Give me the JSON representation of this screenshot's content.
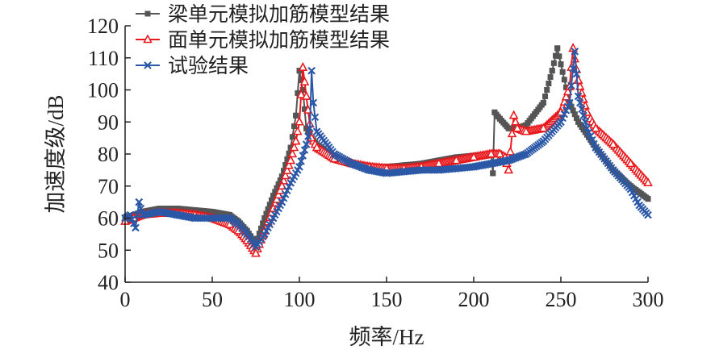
{
  "chart_data": {
    "type": "line",
    "xlabel": "频率/Hz",
    "ylabel": "加速度级/dB",
    "xlim": [
      0,
      300
    ],
    "ylim": [
      40,
      120
    ],
    "xticks": [
      "0",
      "50",
      "100",
      "150",
      "200",
      "250",
      "300"
    ],
    "yticks": [
      "40",
      "50",
      "60",
      "70",
      "80",
      "90",
      "100",
      "110",
      "120"
    ],
    "grid": false,
    "legend_position": "top-left",
    "series": [
      {
        "name": "梁单元模拟加筋模型结果",
        "color": "#555555",
        "marker": "square",
        "points": [
          [
            0,
            60
          ],
          [
            5,
            61
          ],
          [
            10,
            62
          ],
          [
            20,
            63
          ],
          [
            30,
            63
          ],
          [
            40,
            62.5
          ],
          [
            50,
            62
          ],
          [
            60,
            61
          ],
          [
            65,
            59
          ],
          [
            70,
            56
          ],
          [
            75,
            52
          ],
          [
            80,
            60
          ],
          [
            85,
            67
          ],
          [
            90,
            73
          ],
          [
            95,
            82
          ],
          [
            98,
            92
          ],
          [
            100,
            106
          ],
          [
            102,
            100
          ],
          [
            104,
            88
          ],
          [
            107,
            85
          ],
          [
            110,
            83
          ],
          [
            120,
            79
          ],
          [
            130,
            77
          ],
          [
            140,
            76
          ],
          [
            150,
            76
          ],
          [
            160,
            76.5
          ],
          [
            170,
            77
          ],
          [
            180,
            78
          ],
          [
            190,
            79
          ],
          [
            200,
            79.5
          ],
          [
            210,
            80
          ],
          [
            211,
            74
          ],
          [
            212,
            93
          ],
          [
            215,
            91
          ],
          [
            220,
            88
          ],
          [
            225,
            88
          ],
          [
            230,
            89
          ],
          [
            240,
            96
          ],
          [
            245,
            106
          ],
          [
            248,
            113
          ],
          [
            250,
            108
          ],
          [
            255,
            96
          ],
          [
            260,
            90
          ],
          [
            270,
            82
          ],
          [
            280,
            75
          ],
          [
            290,
            70
          ],
          [
            295,
            68
          ],
          [
            300,
            66
          ]
        ]
      },
      {
        "name": "面单元模拟加筋模型结果",
        "color": "#e8191c",
        "marker": "triangle",
        "points": [
          [
            0,
            59
          ],
          [
            5,
            60
          ],
          [
            10,
            61
          ],
          [
            20,
            61.5
          ],
          [
            30,
            61.5
          ],
          [
            40,
            61
          ],
          [
            50,
            60
          ],
          [
            60,
            58
          ],
          [
            65,
            56
          ],
          [
            70,
            53
          ],
          [
            75,
            49
          ],
          [
            80,
            56
          ],
          [
            85,
            63
          ],
          [
            90,
            70
          ],
          [
            95,
            78
          ],
          [
            98,
            84
          ],
          [
            100,
            90
          ],
          [
            102,
            107
          ],
          [
            104,
            98
          ],
          [
            107,
            85
          ],
          [
            110,
            82
          ],
          [
            120,
            78.5
          ],
          [
            130,
            77
          ],
          [
            140,
            76
          ],
          [
            150,
            75.5
          ],
          [
            160,
            75.5
          ],
          [
            170,
            76
          ],
          [
            180,
            77
          ],
          [
            190,
            78
          ],
          [
            200,
            79
          ],
          [
            210,
            80
          ],
          [
            215,
            80
          ],
          [
            218,
            79
          ],
          [
            220,
            75
          ],
          [
            223,
            92
          ],
          [
            225,
            88
          ],
          [
            230,
            87
          ],
          [
            240,
            88
          ],
          [
            250,
            93
          ],
          [
            255,
            101
          ],
          [
            257,
            113
          ],
          [
            260,
            103
          ],
          [
            265,
            93
          ],
          [
            270,
            88
          ],
          [
            280,
            83
          ],
          [
            290,
            77
          ],
          [
            300,
            71
          ]
        ]
      },
      {
        "name": "试验结果",
        "color": "#2b58a6",
        "marker": "x",
        "points": [
          [
            0,
            60
          ],
          [
            3,
            61
          ],
          [
            6,
            57
          ],
          [
            8,
            65
          ],
          [
            10,
            61
          ],
          [
            20,
            62
          ],
          [
            30,
            61
          ],
          [
            40,
            60
          ],
          [
            50,
            60
          ],
          [
            60,
            60
          ],
          [
            65,
            58
          ],
          [
            70,
            55
          ],
          [
            75,
            51
          ],
          [
            80,
            55
          ],
          [
            85,
            60
          ],
          [
            90,
            65
          ],
          [
            95,
            71
          ],
          [
            100,
            76
          ],
          [
            104,
            83
          ],
          [
            106,
            88
          ],
          [
            107,
            106
          ],
          [
            108,
            96
          ],
          [
            110,
            87
          ],
          [
            120,
            80
          ],
          [
            130,
            77
          ],
          [
            140,
            75
          ],
          [
            150,
            74
          ],
          [
            160,
            74.5
          ],
          [
            170,
            75
          ],
          [
            180,
            75
          ],
          [
            190,
            75.5
          ],
          [
            200,
            76
          ],
          [
            210,
            77
          ],
          [
            220,
            78
          ],
          [
            230,
            80
          ],
          [
            240,
            84
          ],
          [
            250,
            90
          ],
          [
            255,
            96
          ],
          [
            258,
            112
          ],
          [
            260,
            98
          ],
          [
            265,
            88
          ],
          [
            270,
            82
          ],
          [
            280,
            75
          ],
          [
            290,
            69
          ],
          [
            295,
            64
          ],
          [
            300,
            61
          ]
        ]
      }
    ]
  }
}
